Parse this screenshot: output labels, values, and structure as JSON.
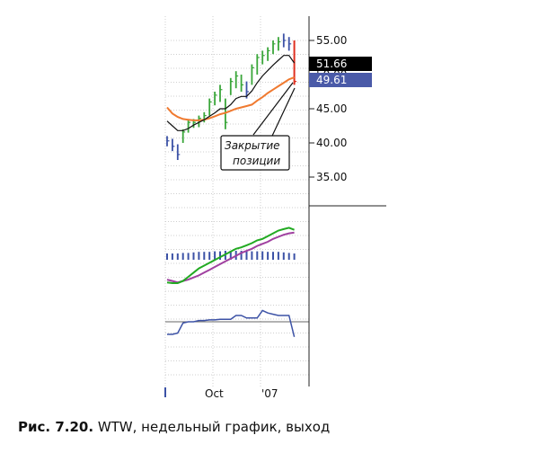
{
  "caption": {
    "figure": "Рис. 7.20.",
    "text": "WTW, недельный график, выход"
  },
  "annotation": {
    "line1": "Закрытие",
    "line2": "позиции"
  },
  "price_badges": {
    "upper": "51.66",
    "lower": "49.61"
  },
  "chart_data": [
    {
      "type": "line",
      "panel": "price",
      "y_tick_labels": [
        "55.00",
        "50.00",
        "45.00",
        "40.00",
        "35.00"
      ],
      "ylim": [
        32.5,
        57.5
      ],
      "x_labels": [
        "Oct",
        "'07"
      ],
      "grid": true,
      "colors": {
        "up": "#3aa63a",
        "down": "#3c52a6",
        "exit": "#e03020",
        "fast_ma": "#111111",
        "slow_ma": "#f07a30"
      },
      "bars": [
        {
          "high": 41.0,
          "low": 39.5,
          "close": 40.3,
          "dir": "down"
        },
        {
          "high": 40.6,
          "low": 38.8,
          "close": 39.5,
          "dir": "down"
        },
        {
          "high": 39.8,
          "low": 37.5,
          "close": 38.3,
          "dir": "down"
        },
        {
          "high": 42.0,
          "low": 40.0,
          "close": 41.6,
          "dir": "up"
        },
        {
          "high": 43.5,
          "low": 41.5,
          "close": 43.0,
          "dir": "up"
        },
        {
          "high": 43.5,
          "low": 42.2,
          "close": 43.0,
          "dir": "up"
        },
        {
          "high": 44.0,
          "low": 42.3,
          "close": 43.6,
          "dir": "up"
        },
        {
          "high": 44.5,
          "low": 43.0,
          "close": 44.0,
          "dir": "up"
        },
        {
          "high": 46.5,
          "low": 44.0,
          "close": 46.0,
          "dir": "up"
        },
        {
          "high": 47.5,
          "low": 45.5,
          "close": 47.0,
          "dir": "up"
        },
        {
          "high": 48.5,
          "low": 46.0,
          "close": 47.8,
          "dir": "up"
        },
        {
          "high": 46.5,
          "low": 42.0,
          "close": 43.0,
          "dir": "up"
        },
        {
          "high": 49.5,
          "low": 47.0,
          "close": 49.0,
          "dir": "up"
        },
        {
          "high": 50.5,
          "low": 48.0,
          "close": 49.8,
          "dir": "up"
        },
        {
          "high": 50.0,
          "low": 47.5,
          "close": 48.5,
          "dir": "up"
        },
        {
          "high": 49.0,
          "low": 46.5,
          "close": 47.5,
          "dir": "down"
        },
        {
          "high": 51.5,
          "low": 48.5,
          "close": 51.0,
          "dir": "up"
        },
        {
          "high": 53.0,
          "low": 50.0,
          "close": 52.5,
          "dir": "up"
        },
        {
          "high": 53.5,
          "low": 51.5,
          "close": 52.8,
          "dir": "up"
        },
        {
          "high": 54.0,
          "low": 52.0,
          "close": 53.5,
          "dir": "up"
        },
        {
          "high": 55.0,
          "low": 53.0,
          "close": 54.5,
          "dir": "up"
        },
        {
          "high": 55.5,
          "low": 53.5,
          "close": 54.8,
          "dir": "up"
        },
        {
          "high": 56.0,
          "low": 54.0,
          "close": 55.0,
          "dir": "down"
        },
        {
          "high": 55.5,
          "low": 53.5,
          "close": 54.5,
          "dir": "down"
        },
        {
          "high": 55.0,
          "low": 48.5,
          "close": 49.0,
          "dir": "exit"
        }
      ],
      "series": [
        {
          "values": [
            43.2,
            42.5,
            41.8,
            41.8,
            42.1,
            42.6,
            43.0,
            43.4,
            43.9,
            44.4,
            45.0,
            45.0,
            45.6,
            46.5,
            46.8,
            46.8,
            47.6,
            48.8,
            49.8,
            50.6,
            51.4,
            52.1,
            52.8,
            52.8,
            51.7
          ]
        },
        {
          "values": [
            45.2,
            44.3,
            43.8,
            43.5,
            43.4,
            43.3,
            43.3,
            43.4,
            43.6,
            43.9,
            44.2,
            44.4,
            44.7,
            45.0,
            45.2,
            45.4,
            45.6,
            46.2,
            46.7,
            47.3,
            47.8,
            48.3,
            48.8,
            49.3,
            49.6
          ]
        }
      ]
    },
    {
      "type": "line",
      "panel": "indicator",
      "ylim": [
        0,
        100
      ],
      "colors": {
        "line1": "#22aa22",
        "line2": "#a040a0",
        "hist": "#3c52a6"
      },
      "series": [
        {
          "values": [
            10,
            9,
            9,
            12,
            18,
            24,
            30,
            34,
            38,
            42,
            46,
            50,
            54,
            58,
            60,
            63,
            66,
            70,
            72,
            76,
            80,
            84,
            86,
            88,
            85
          ]
        },
        {
          "values": [
            14,
            12,
            10,
            12,
            14,
            17,
            20,
            24,
            28,
            32,
            36,
            40,
            44,
            48,
            52,
            55,
            58,
            62,
            65,
            68,
            72,
            75,
            78,
            80,
            81
          ]
        }
      ],
      "histogram": [
        5,
        5,
        5,
        6,
        6,
        7,
        8,
        8,
        8,
        9,
        9,
        10,
        10,
        10,
        10,
        10,
        9,
        9,
        9,
        8,
        8,
        8,
        7,
        6,
        5
      ]
    },
    {
      "type": "line",
      "panel": "lower",
      "ylim": [
        0,
        100
      ],
      "colors": {
        "line": "#3c52a6",
        "ref": "#444444"
      },
      "reference": 60,
      "series": [
        {
          "values": [
            40,
            40,
            42,
            58,
            60,
            60,
            62,
            62,
            63,
            63,
            64,
            64,
            64,
            70,
            70,
            66,
            66,
            66,
            78,
            74,
            72,
            70,
            70,
            70,
            36
          ]
        }
      ]
    }
  ]
}
